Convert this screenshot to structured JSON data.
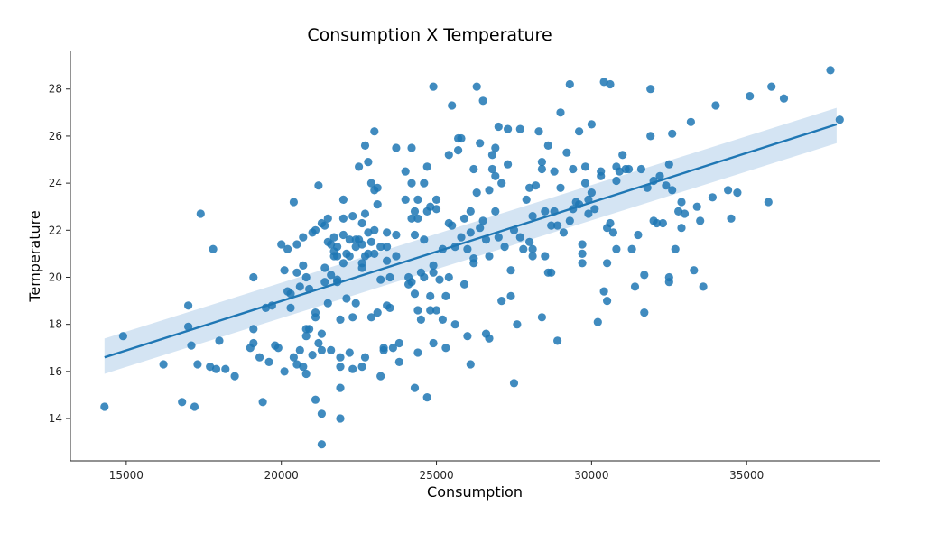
{
  "chart_data": {
    "type": "scatter",
    "title": "Consumption X Temperature",
    "xlabel": "Consumption",
    "ylabel": "Temperature",
    "xlim": [
      13200,
      39300
    ],
    "ylim": [
      12.2,
      29.6
    ],
    "xticks": [
      15000,
      20000,
      25000,
      30000,
      35000
    ],
    "yticks": [
      14,
      16,
      18,
      20,
      22,
      24,
      26,
      28
    ],
    "grid": false,
    "legend": "none",
    "colors": {
      "points": "#1f77b4",
      "regression_line": "#1f77b4",
      "confidence_band": "#c6dbef"
    },
    "regression": {
      "x": [
        14300,
        37900
      ],
      "y": [
        16.6,
        26.5
      ],
      "ci_lower": [
        15.9,
        25.7
      ],
      "ci_upper": [
        17.4,
        27.2
      ]
    },
    "points": [
      [
        14300,
        14.5
      ],
      [
        14900,
        17.5
      ],
      [
        16200,
        16.3
      ],
      [
        16800,
        14.7
      ],
      [
        17000,
        18.8
      ],
      [
        17000,
        17.9
      ],
      [
        17100,
        17.1
      ],
      [
        17200,
        14.5
      ],
      [
        17300,
        16.3
      ],
      [
        17400,
        22.7
      ],
      [
        17700,
        16.2
      ],
      [
        17800,
        21.2
      ],
      [
        17900,
        16.1
      ],
      [
        18000,
        17.3
      ],
      [
        18200,
        16.1
      ],
      [
        18500,
        15.8
      ],
      [
        19000,
        17.0
      ],
      [
        19100,
        17.2
      ],
      [
        19100,
        20.0
      ],
      [
        19100,
        17.8
      ],
      [
        19300,
        16.6
      ],
      [
        19400,
        14.7
      ],
      [
        19500,
        18.7
      ],
      [
        19600,
        16.4
      ],
      [
        19700,
        18.8
      ],
      [
        19800,
        17.1
      ],
      [
        19900,
        17.0
      ],
      [
        20000,
        21.4
      ],
      [
        20100,
        20.3
      ],
      [
        20100,
        16.0
      ],
      [
        20200,
        19.4
      ],
      [
        20200,
        21.2
      ],
      [
        20300,
        18.7
      ],
      [
        20300,
        19.3
      ],
      [
        20400,
        23.2
      ],
      [
        20400,
        16.6
      ],
      [
        20500,
        20.2
      ],
      [
        20500,
        16.3
      ],
      [
        20500,
        21.4
      ],
      [
        20600,
        16.9
      ],
      [
        20600,
        19.6
      ],
      [
        20700,
        20.5
      ],
      [
        20700,
        21.7
      ],
      [
        20700,
        16.2
      ],
      [
        20800,
        17.5
      ],
      [
        20800,
        20.0
      ],
      [
        20800,
        17.8
      ],
      [
        20800,
        15.9
      ],
      [
        20900,
        19.5
      ],
      [
        20900,
        17.8
      ],
      [
        21000,
        21.9
      ],
      [
        21000,
        16.7
      ],
      [
        21100,
        14.8
      ],
      [
        21100,
        18.5
      ],
      [
        21100,
        18.3
      ],
      [
        21100,
        22.0
      ],
      [
        21200,
        23.9
      ],
      [
        21200,
        17.2
      ],
      [
        21300,
        16.9
      ],
      [
        21300,
        14.2
      ],
      [
        21300,
        12.9
      ],
      [
        21300,
        22.3
      ],
      [
        21300,
        17.6
      ],
      [
        21400,
        20.4
      ],
      [
        21400,
        22.2
      ],
      [
        21400,
        19.8
      ],
      [
        21500,
        22.5
      ],
      [
        21500,
        21.5
      ],
      [
        21500,
        18.9
      ],
      [
        21600,
        16.9
      ],
      [
        21600,
        20.1
      ],
      [
        21600,
        21.4
      ],
      [
        21700,
        21.1
      ],
      [
        21700,
        20.9
      ],
      [
        21700,
        21.7
      ],
      [
        21800,
        21.3
      ],
      [
        21800,
        20.9
      ],
      [
        21800,
        19.8
      ],
      [
        21800,
        19.9
      ],
      [
        21900,
        14.0
      ],
      [
        21900,
        16.2
      ],
      [
        21900,
        15.3
      ],
      [
        21900,
        18.2
      ],
      [
        21900,
        16.6
      ],
      [
        22000,
        22.5
      ],
      [
        22000,
        23.3
      ],
      [
        22000,
        21.8
      ],
      [
        22000,
        20.6
      ],
      [
        22100,
        21.0
      ],
      [
        22100,
        19.1
      ],
      [
        22200,
        16.8
      ],
      [
        22200,
        21.6
      ],
      [
        22200,
        20.9
      ],
      [
        22300,
        16.1
      ],
      [
        22300,
        18.3
      ],
      [
        22300,
        22.6
      ],
      [
        22400,
        21.3
      ],
      [
        22400,
        21.6
      ],
      [
        22400,
        18.9
      ],
      [
        22500,
        24.7
      ],
      [
        22500,
        21.6
      ],
      [
        22600,
        22.3
      ],
      [
        22600,
        16.2
      ],
      [
        22600,
        21.4
      ],
      [
        22600,
        20.4
      ],
      [
        22600,
        20.6
      ],
      [
        22700,
        25.6
      ],
      [
        22700,
        20.9
      ],
      [
        22700,
        16.6
      ],
      [
        22700,
        22.7
      ],
      [
        22800,
        24.9
      ],
      [
        22800,
        21.9
      ],
      [
        22800,
        21.0
      ],
      [
        22900,
        24.0
      ],
      [
        22900,
        18.3
      ],
      [
        22900,
        21.5
      ],
      [
        23000,
        26.2
      ],
      [
        23000,
        23.7
      ],
      [
        23000,
        22.0
      ],
      [
        23000,
        21.0
      ],
      [
        23100,
        23.8
      ],
      [
        23100,
        23.1
      ],
      [
        23100,
        18.5
      ],
      [
        23200,
        15.8
      ],
      [
        23200,
        19.9
      ],
      [
        23200,
        21.3
      ],
      [
        23300,
        16.9
      ],
      [
        23300,
        17.0
      ],
      [
        23400,
        20.7
      ],
      [
        23400,
        18.8
      ],
      [
        23400,
        21.3
      ],
      [
        23400,
        21.9
      ],
      [
        23500,
        20.0
      ],
      [
        23500,
        18.7
      ],
      [
        23600,
        17.0
      ],
      [
        23700,
        25.5
      ],
      [
        23700,
        20.9
      ],
      [
        23700,
        21.8
      ],
      [
        23800,
        16.4
      ],
      [
        23800,
        17.2
      ],
      [
        24000,
        24.5
      ],
      [
        24000,
        23.3
      ],
      [
        24100,
        19.7
      ],
      [
        24100,
        20.0
      ],
      [
        24200,
        25.5
      ],
      [
        24200,
        24.0
      ],
      [
        24200,
        22.5
      ],
      [
        24200,
        19.8
      ],
      [
        24300,
        15.3
      ],
      [
        24300,
        21.8
      ],
      [
        24300,
        22.8
      ],
      [
        24300,
        19.3
      ],
      [
        24400,
        18.6
      ],
      [
        24400,
        16.8
      ],
      [
        24400,
        23.3
      ],
      [
        24400,
        22.5
      ],
      [
        24500,
        20.2
      ],
      [
        24500,
        18.2
      ],
      [
        24600,
        20.0
      ],
      [
        24600,
        21.6
      ],
      [
        24600,
        24.0
      ],
      [
        24700,
        14.9
      ],
      [
        24700,
        24.7
      ],
      [
        24700,
        22.8
      ],
      [
        24800,
        23.0
      ],
      [
        24800,
        19.2
      ],
      [
        24800,
        18.6
      ],
      [
        24900,
        28.1
      ],
      [
        24900,
        20.5
      ],
      [
        24900,
        20.2
      ],
      [
        24900,
        17.2
      ],
      [
        25000,
        23.3
      ],
      [
        25000,
        22.9
      ],
      [
        25000,
        18.6
      ],
      [
        25100,
        19.9
      ],
      [
        25200,
        21.2
      ],
      [
        25200,
        18.2
      ],
      [
        25300,
        17.0
      ],
      [
        25300,
        19.2
      ],
      [
        25400,
        25.2
      ],
      [
        25400,
        22.3
      ],
      [
        25400,
        20.0
      ],
      [
        25500,
        27.3
      ],
      [
        25500,
        22.2
      ],
      [
        25600,
        18.0
      ],
      [
        25600,
        21.3
      ],
      [
        25700,
        25.4
      ],
      [
        25700,
        25.9
      ],
      [
        25800,
        25.9
      ],
      [
        25800,
        21.7
      ],
      [
        25900,
        22.5
      ],
      [
        25900,
        19.7
      ],
      [
        26000,
        21.2
      ],
      [
        26000,
        17.5
      ],
      [
        26100,
        22.8
      ],
      [
        26100,
        21.9
      ],
      [
        26100,
        16.3
      ],
      [
        26200,
        24.6
      ],
      [
        26200,
        20.6
      ],
      [
        26200,
        20.8
      ],
      [
        26300,
        28.1
      ],
      [
        26300,
        23.6
      ],
      [
        26400,
        22.1
      ],
      [
        26400,
        25.7
      ],
      [
        26500,
        27.5
      ],
      [
        26500,
        22.4
      ],
      [
        26600,
        21.6
      ],
      [
        26600,
        17.6
      ],
      [
        26700,
        20.9
      ],
      [
        26700,
        17.4
      ],
      [
        26700,
        23.7
      ],
      [
        26800,
        25.2
      ],
      [
        26800,
        24.6
      ],
      [
        26900,
        24.3
      ],
      [
        26900,
        25.5
      ],
      [
        26900,
        22.8
      ],
      [
        27000,
        26.4
      ],
      [
        27000,
        21.7
      ],
      [
        27100,
        24.0
      ],
      [
        27100,
        19.0
      ],
      [
        27200,
        21.3
      ],
      [
        27300,
        26.3
      ],
      [
        27300,
        24.8
      ],
      [
        27400,
        19.2
      ],
      [
        27400,
        20.3
      ],
      [
        27500,
        15.5
      ],
      [
        27500,
        22.0
      ],
      [
        27600,
        18.0
      ],
      [
        27700,
        21.7
      ],
      [
        27700,
        26.3
      ],
      [
        27800,
        21.2
      ],
      [
        27900,
        23.3
      ],
      [
        28000,
        23.8
      ],
      [
        28000,
        21.5
      ],
      [
        28100,
        22.6
      ],
      [
        28100,
        21.2
      ],
      [
        28100,
        20.9
      ],
      [
        28200,
        23.9
      ],
      [
        28300,
        26.2
      ],
      [
        28400,
        24.9
      ],
      [
        28400,
        24.6
      ],
      [
        28400,
        18.3
      ],
      [
        28500,
        22.8
      ],
      [
        28500,
        20.9
      ],
      [
        28600,
        25.6
      ],
      [
        28600,
        20.2
      ],
      [
        28700,
        22.2
      ],
      [
        28700,
        20.2
      ],
      [
        28800,
        22.8
      ],
      [
        28800,
        24.5
      ],
      [
        28900,
        17.3
      ],
      [
        28900,
        22.2
      ],
      [
        29000,
        27.0
      ],
      [
        29000,
        23.8
      ],
      [
        29100,
        21.9
      ],
      [
        29200,
        25.3
      ],
      [
        29300,
        28.2
      ],
      [
        29300,
        22.4
      ],
      [
        29400,
        24.6
      ],
      [
        29400,
        22.9
      ],
      [
        29500,
        23.2
      ],
      [
        29600,
        26.2
      ],
      [
        29600,
        23.1
      ],
      [
        29700,
        21.4
      ],
      [
        29700,
        21.0
      ],
      [
        29700,
        20.6
      ],
      [
        29800,
        24.0
      ],
      [
        29800,
        24.7
      ],
      [
        29900,
        22.7
      ],
      [
        29900,
        23.3
      ],
      [
        30000,
        26.5
      ],
      [
        30000,
        23.6
      ],
      [
        30100,
        22.9
      ],
      [
        30200,
        18.1
      ],
      [
        30300,
        24.3
      ],
      [
        30300,
        24.5
      ],
      [
        30400,
        28.3
      ],
      [
        30400,
        19.4
      ],
      [
        30500,
        22.1
      ],
      [
        30500,
        19.0
      ],
      [
        30500,
        20.6
      ],
      [
        30600,
        28.2
      ],
      [
        30600,
        22.3
      ],
      [
        30700,
        21.9
      ],
      [
        30800,
        24.1
      ],
      [
        30800,
        24.7
      ],
      [
        30800,
        21.2
      ],
      [
        30900,
        24.5
      ],
      [
        31000,
        25.2
      ],
      [
        31100,
        24.6
      ],
      [
        31200,
        24.6
      ],
      [
        31300,
        21.2
      ],
      [
        31400,
        19.6
      ],
      [
        31500,
        21.8
      ],
      [
        31600,
        24.6
      ],
      [
        31700,
        20.1
      ],
      [
        31700,
        18.5
      ],
      [
        31800,
        23.8
      ],
      [
        31900,
        28.0
      ],
      [
        31900,
        26.0
      ],
      [
        32000,
        24.1
      ],
      [
        32000,
        22.4
      ],
      [
        32100,
        22.3
      ],
      [
        32200,
        24.3
      ],
      [
        32300,
        22.3
      ],
      [
        32400,
        23.9
      ],
      [
        32500,
        24.8
      ],
      [
        32500,
        19.8
      ],
      [
        32500,
        20.0
      ],
      [
        32600,
        26.1
      ],
      [
        32600,
        23.7
      ],
      [
        32700,
        21.2
      ],
      [
        32800,
        22.8
      ],
      [
        32900,
        23.2
      ],
      [
        32900,
        22.1
      ],
      [
        33000,
        22.7
      ],
      [
        33200,
        26.6
      ],
      [
        33300,
        20.3
      ],
      [
        33400,
        23.0
      ],
      [
        33500,
        22.4
      ],
      [
        33600,
        19.6
      ],
      [
        33900,
        23.4
      ],
      [
        34000,
        27.3
      ],
      [
        34400,
        23.7
      ],
      [
        34500,
        22.5
      ],
      [
        34700,
        23.6
      ],
      [
        35100,
        27.7
      ],
      [
        35700,
        23.2
      ],
      [
        35800,
        28.1
      ],
      [
        36200,
        27.6
      ],
      [
        37700,
        28.8
      ],
      [
        38000,
        26.7
      ]
    ]
  }
}
